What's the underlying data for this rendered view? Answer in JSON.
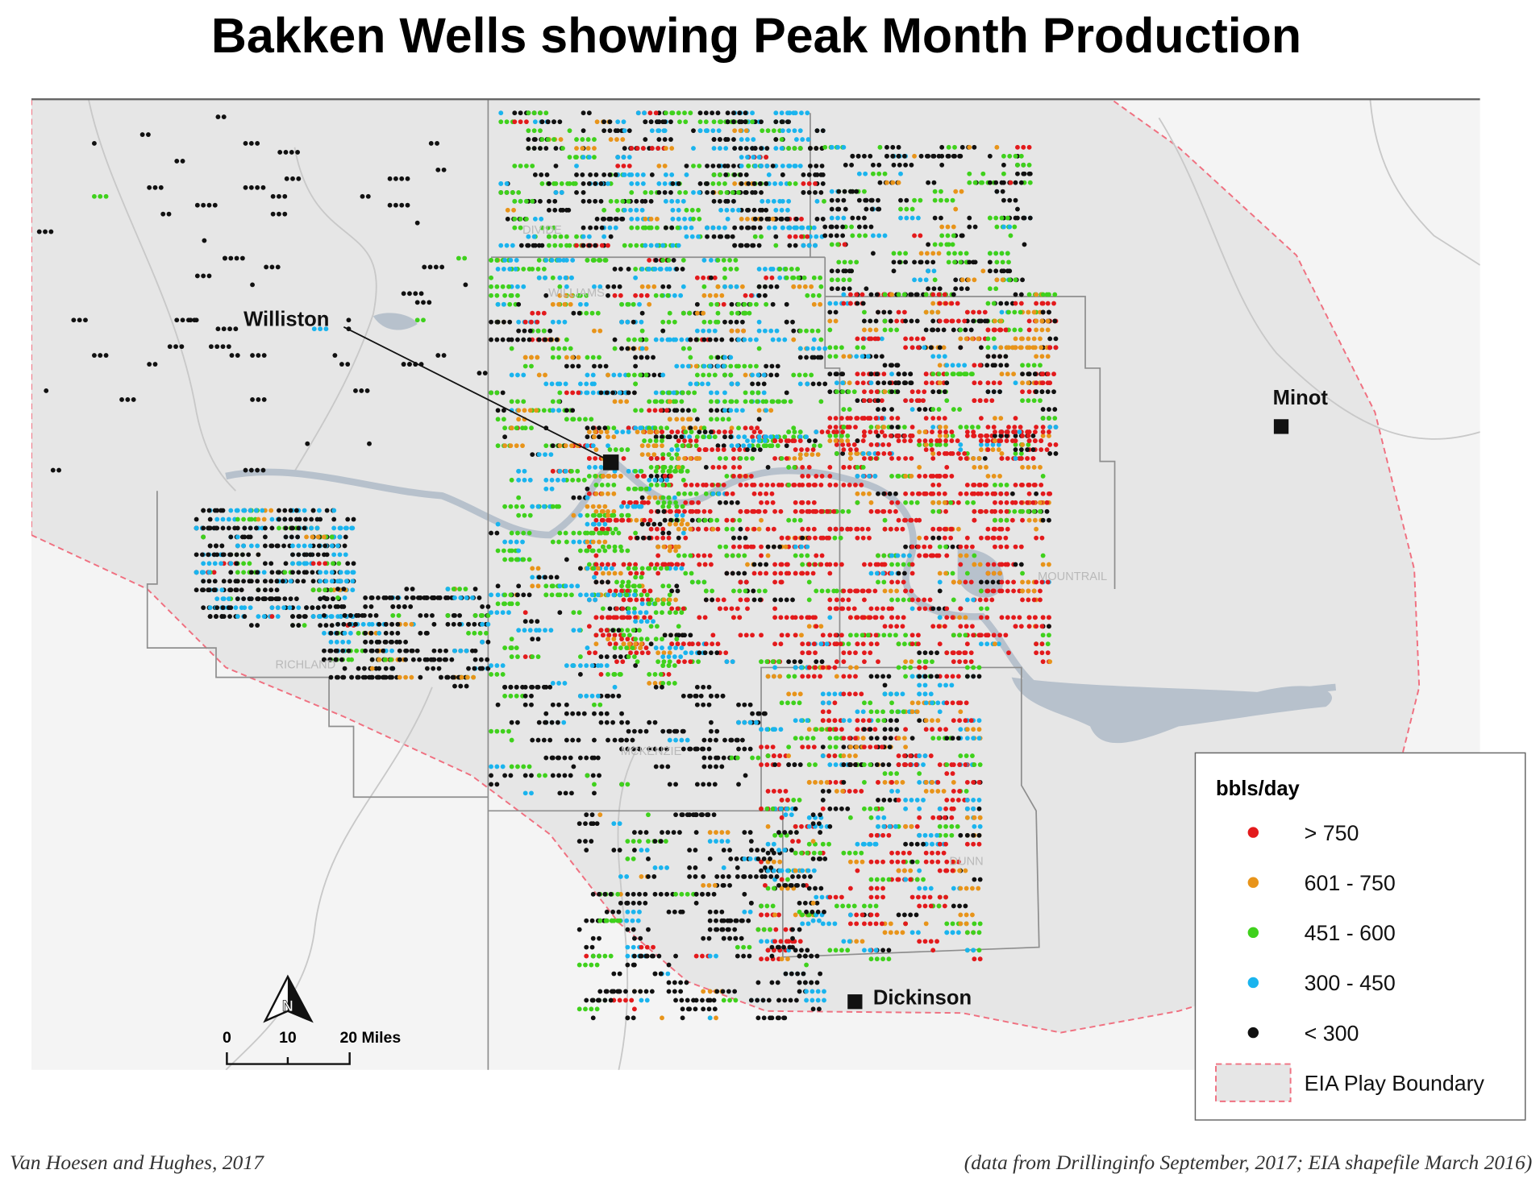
{
  "title": "Bakken Wells showing Peak Month Production",
  "places": [
    {
      "label": "Williston"
    },
    {
      "label": "Minot"
    },
    {
      "label": "Dickinson"
    }
  ],
  "counties": [
    "DIVIDE",
    "WILLIAMS",
    "MOUNTRAIL",
    "RICHLAND",
    "MCKENZIE",
    "DUNN"
  ],
  "legend": {
    "title": "bbls/day",
    "items": [
      {
        "label": "> 750",
        "color": "#e31a1c"
      },
      {
        "label": "601 - 750",
        "color": "#e8941a"
      },
      {
        "label": "451 - 600",
        "color": "#3fd11c"
      },
      {
        "label": "300 - 450",
        "color": "#1ab4ee"
      },
      {
        "label": "< 300",
        "color": "#111111"
      }
    ],
    "boundary": "EIA Play Boundary"
  },
  "scale_bar": {
    "labels": [
      "0",
      "10",
      "20 Miles"
    ]
  },
  "north_arrow": "N",
  "footer": {
    "left": "Van Hoesen and Hughes, 2017",
    "right": "(data from  Drillinginfo  September, 2017; EIA shapefile March 2016)"
  }
}
